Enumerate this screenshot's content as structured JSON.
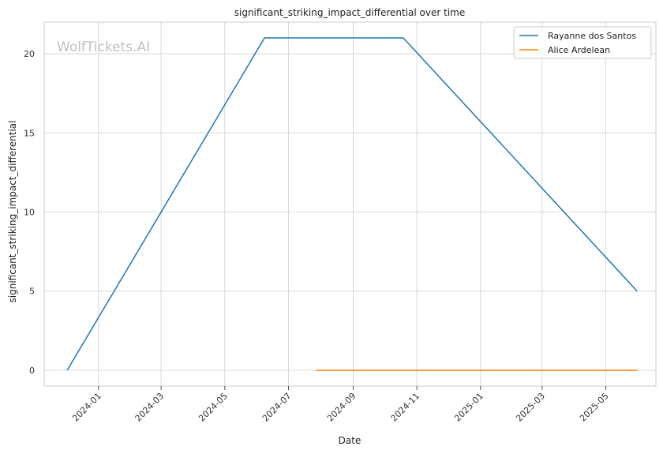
{
  "watermark": "WolfTickets.AI",
  "chart_data": {
    "type": "line",
    "title": "significant_striking_impact_differential over time",
    "xlabel": "Date",
    "ylabel": "significant_striking_impact_differential",
    "x_ticks": [
      "2024-01",
      "2024-03",
      "2024-05",
      "2024-07",
      "2024-09",
      "2024-11",
      "2025-01",
      "2025-03",
      "2025-05"
    ],
    "y_ticks": [
      0,
      5,
      10,
      15,
      20
    ],
    "xlim": [
      "2023-11-10",
      "2025-06-18"
    ],
    "ylim": [
      -1,
      22
    ],
    "grid": true,
    "legend_position": "top-right",
    "series": [
      {
        "name": "Rayanne dos Santos",
        "color": "#1f77b4",
        "points": [
          {
            "x": "2023-12-02",
            "y": 0
          },
          {
            "x": "2024-06-08",
            "y": 21
          },
          {
            "x": "2024-10-19",
            "y": 21
          },
          {
            "x": "2025-05-31",
            "y": 5
          }
        ]
      },
      {
        "name": "Alice Ardelean",
        "color": "#ff7f0e",
        "points": [
          {
            "x": "2024-07-27",
            "y": 0
          },
          {
            "x": "2025-05-31",
            "y": 0
          }
        ]
      }
    ]
  }
}
